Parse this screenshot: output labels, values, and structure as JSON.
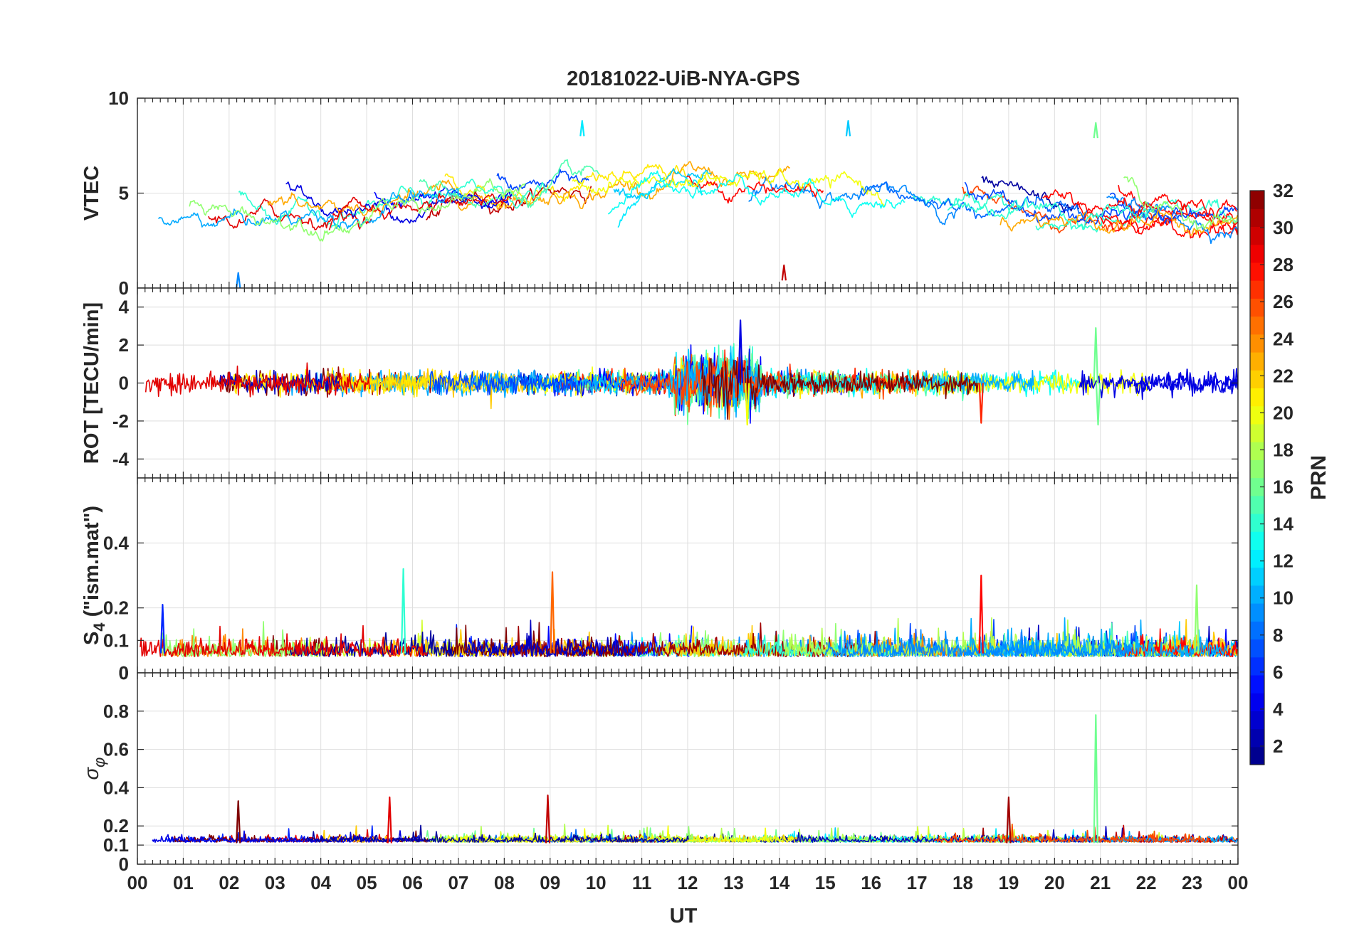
{
  "chart_data": {
    "type": "line",
    "title": "20181022-UiB-NYA-GPS",
    "xlabel": "UT",
    "x_range": [
      0,
      24
    ],
    "x_tick_labels": [
      "00",
      "01",
      "02",
      "03",
      "04",
      "05",
      "06",
      "07",
      "08",
      "09",
      "10",
      "11",
      "12",
      "13",
      "14",
      "15",
      "16",
      "17",
      "18",
      "19",
      "20",
      "21",
      "22",
      "23",
      "00"
    ],
    "color_by": "PRN",
    "colormap": "jet",
    "colorbar": {
      "label": "PRN",
      "range": [
        1,
        32
      ],
      "tick_labels": [
        "2",
        "4",
        "6",
        "8",
        "10",
        "12",
        "14",
        "16",
        "18",
        "20",
        "22",
        "24",
        "26",
        "28",
        "30",
        "32"
      ],
      "levels": 32,
      "location": "right"
    },
    "panels": [
      {
        "ylabel": "VTEC",
        "ylim": [
          0,
          10
        ],
        "y_ticks": [
          0,
          5,
          10
        ],
        "y_tick_labels": [
          "0",
          "5",
          "10"
        ],
        "description": "VTEC per satellite arc, mostly 2.5-7 TECU; peaks near 12-13 UT; isolated arc reaching 8.7 near 21 UT",
        "highlights": [
          {
            "prn": 16,
            "x": 20.9,
            "y": 8.7
          },
          {
            "prn": 11,
            "x": 15.5,
            "y": 8.8
          },
          {
            "prn": 12,
            "x": 9.7,
            "y": 8.8
          },
          {
            "prn": 9,
            "x": 2.2,
            "y": 0.8
          },
          {
            "prn": 30,
            "x": 14.1,
            "y": 1.2
          }
        ]
      },
      {
        "ylabel": "ROT [TECU/min]",
        "ylim": [
          -5,
          5
        ],
        "y_ticks": [
          -4,
          -2,
          0,
          2,
          4
        ],
        "y_tick_labels": [
          "-4",
          "-2",
          "0",
          "2",
          "4"
        ],
        "description": "Rate of TEC around 0, typically within +-1; enhanced 12-13.5 UT up to about +3.3/-2.2; spike near 20.9 UT",
        "highlights": [
          {
            "prn": 4,
            "x": 13.15,
            "y": 3.3
          },
          {
            "prn": 20,
            "x": 13.3,
            "y": -2.2
          },
          {
            "prn": 16,
            "x": 20.9,
            "y": 2.9
          },
          {
            "prn": 16,
            "x": 20.95,
            "y": -2.2
          },
          {
            "prn": 27,
            "x": 18.4,
            "y": -2.1
          }
        ]
      },
      {
        "ylabel": "S4 (\"ism.mat\")",
        "ylabel_main": "S",
        "ylabel_sub": "4",
        "ylabel_rest": " (\"ism.mat\")",
        "ylim": [
          0,
          0.6
        ],
        "y_ticks": [
          0,
          0.1,
          0.2,
          0.4
        ],
        "y_tick_labels": [
          "0",
          "0.1",
          "0.2",
          "0.4"
        ],
        "extra_tick_label": "0",
        "description": "Amplitude scintillation index mostly 0.03-0.12 with bursts up to about 0.32; plateau near 0.17 around 10.2 UT",
        "highlights": [
          {
            "prn": 14,
            "x": 5.8,
            "y": 0.32
          },
          {
            "prn": 25,
            "x": 9.05,
            "y": 0.31
          },
          {
            "prn": 28,
            "x": 18.4,
            "y": 0.3
          },
          {
            "prn": 17,
            "x": 23.1,
            "y": 0.27
          },
          {
            "prn": 6,
            "x": 0.55,
            "y": 0.21
          }
        ]
      },
      {
        "ylabel": "σφ",
        "ylabel_main": "σ",
        "ylabel_sub": "φ",
        "ylim": [
          0,
          1
        ],
        "y_ticks": [
          0,
          0.1,
          0.2,
          0.4,
          0.6,
          0.8
        ],
        "y_tick_labels": [
          "0",
          "0.1",
          "0.2",
          "0.4",
          "0.6",
          "0.8"
        ],
        "description": "Phase scintillation index near 0.1 baseline, occasional spikes 0.3-0.36; large spike to 0.78 near 20.9 UT",
        "highlights": [
          {
            "prn": 16,
            "x": 20.9,
            "y": 0.78
          },
          {
            "prn": 29,
            "x": 5.5,
            "y": 0.35
          },
          {
            "prn": 30,
            "x": 8.95,
            "y": 0.36
          },
          {
            "prn": 31,
            "x": 19.0,
            "y": 0.35
          },
          {
            "prn": 32,
            "x": 2.2,
            "y": 0.33
          }
        ]
      }
    ]
  }
}
